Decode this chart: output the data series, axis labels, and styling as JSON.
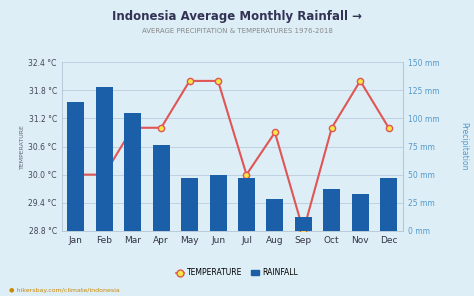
{
  "title": "Indonesia Average Monthly Rainfall →",
  "subtitle": "AVERAGE PRECIPITATION & TEMPERATURES 1976-2018",
  "months": [
    "Jan",
    "Feb",
    "Mar",
    "Apr",
    "May",
    "Jun",
    "Jul",
    "Aug",
    "Sep",
    "Oct",
    "Nov",
    "Dec"
  ],
  "temperature": [
    30.0,
    30.0,
    31.0,
    31.0,
    32.0,
    32.0,
    30.0,
    30.9,
    28.8,
    31.0,
    32.0,
    31.0
  ],
  "rainfall": [
    115,
    128,
    105,
    76,
    47,
    50,
    47,
    28,
    12,
    37,
    33,
    47
  ],
  "temp_ylim": [
    28.8,
    32.4
  ],
  "rain_ylim": [
    0,
    150
  ],
  "temp_yticks": [
    28.8,
    29.4,
    30.0,
    30.6,
    31.2,
    31.8,
    32.4
  ],
  "rain_yticks": [
    0,
    25,
    50,
    75,
    100,
    125,
    150
  ],
  "rain_yticklabels": [
    "0 mm",
    "25 mm",
    "50 mm",
    "75 mm",
    "100 mm",
    "125 mm",
    "150 mm"
  ],
  "bar_color": "#1a5fa8",
  "line_color": "#e05555",
  "marker_face": "#f5e642",
  "marker_edge": "#e05555",
  "bg_color": "#ddeef6",
  "plot_bg": "#ddeef6",
  "title_color": "#333355",
  "subtitle_color": "#888888",
  "left_axis_color": "#555555",
  "right_axis_color": "#5599cc",
  "footer": "hikersbay.com/climate/indonesia",
  "grid_color": "#bbccdd"
}
